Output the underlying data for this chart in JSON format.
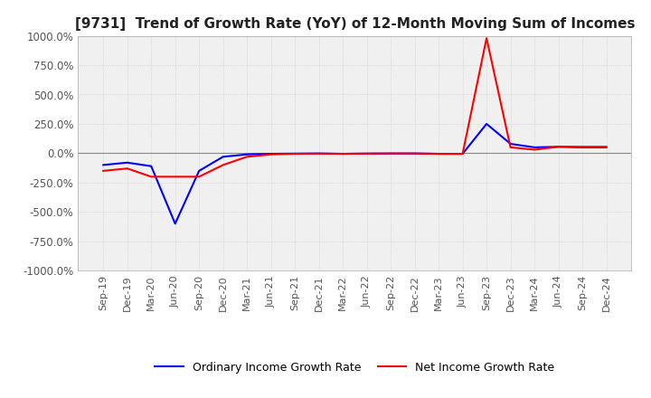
{
  "title": "[9731]  Trend of Growth Rate (YoY) of 12-Month Moving Sum of Incomes",
  "title_fontsize": 11,
  "ylim": [
    -1000,
    1000
  ],
  "yticks": [
    1000,
    750,
    500,
    250,
    0,
    -250,
    -500,
    -750,
    -1000
  ],
  "ytick_labels": [
    "1000.0%",
    "750.0%",
    "500.0%",
    "250.0%",
    "0.0%",
    "-250.0%",
    "-500.0%",
    "-750.0%",
    "-1000.0%"
  ],
  "tick_color": "#555555",
  "grid_color": "#cccccc",
  "background_color": "#f0f0f0",
  "ordinary_color": "#0000ff",
  "net_color": "#ff0000",
  "legend_labels": [
    "Ordinary Income Growth Rate",
    "Net Income Growth Rate"
  ],
  "x_labels": [
    "Sep-19",
    "Dec-19",
    "Mar-20",
    "Jun-20",
    "Sep-20",
    "Dec-20",
    "Mar-21",
    "Jun-21",
    "Sep-21",
    "Dec-21",
    "Mar-22",
    "Jun-22",
    "Sep-22",
    "Dec-22",
    "Mar-23",
    "Jun-23",
    "Sep-23",
    "Dec-23",
    "Mar-24",
    "Jun-24",
    "Sep-24",
    "Dec-24"
  ],
  "ordinary_income_growth": [
    -100,
    -80,
    -110,
    -600,
    -150,
    -30,
    -10,
    -5,
    -3,
    -2,
    -5,
    -3,
    -2,
    -2,
    -5,
    -5,
    250,
    80,
    50,
    55,
    50,
    50
  ],
  "net_income_growth": [
    -150,
    -130,
    -200,
    -200,
    -200,
    -100,
    -30,
    -10,
    -5,
    -3,
    -5,
    -3,
    -2,
    -2,
    -5,
    -5,
    980,
    50,
    30,
    55,
    55,
    55
  ]
}
